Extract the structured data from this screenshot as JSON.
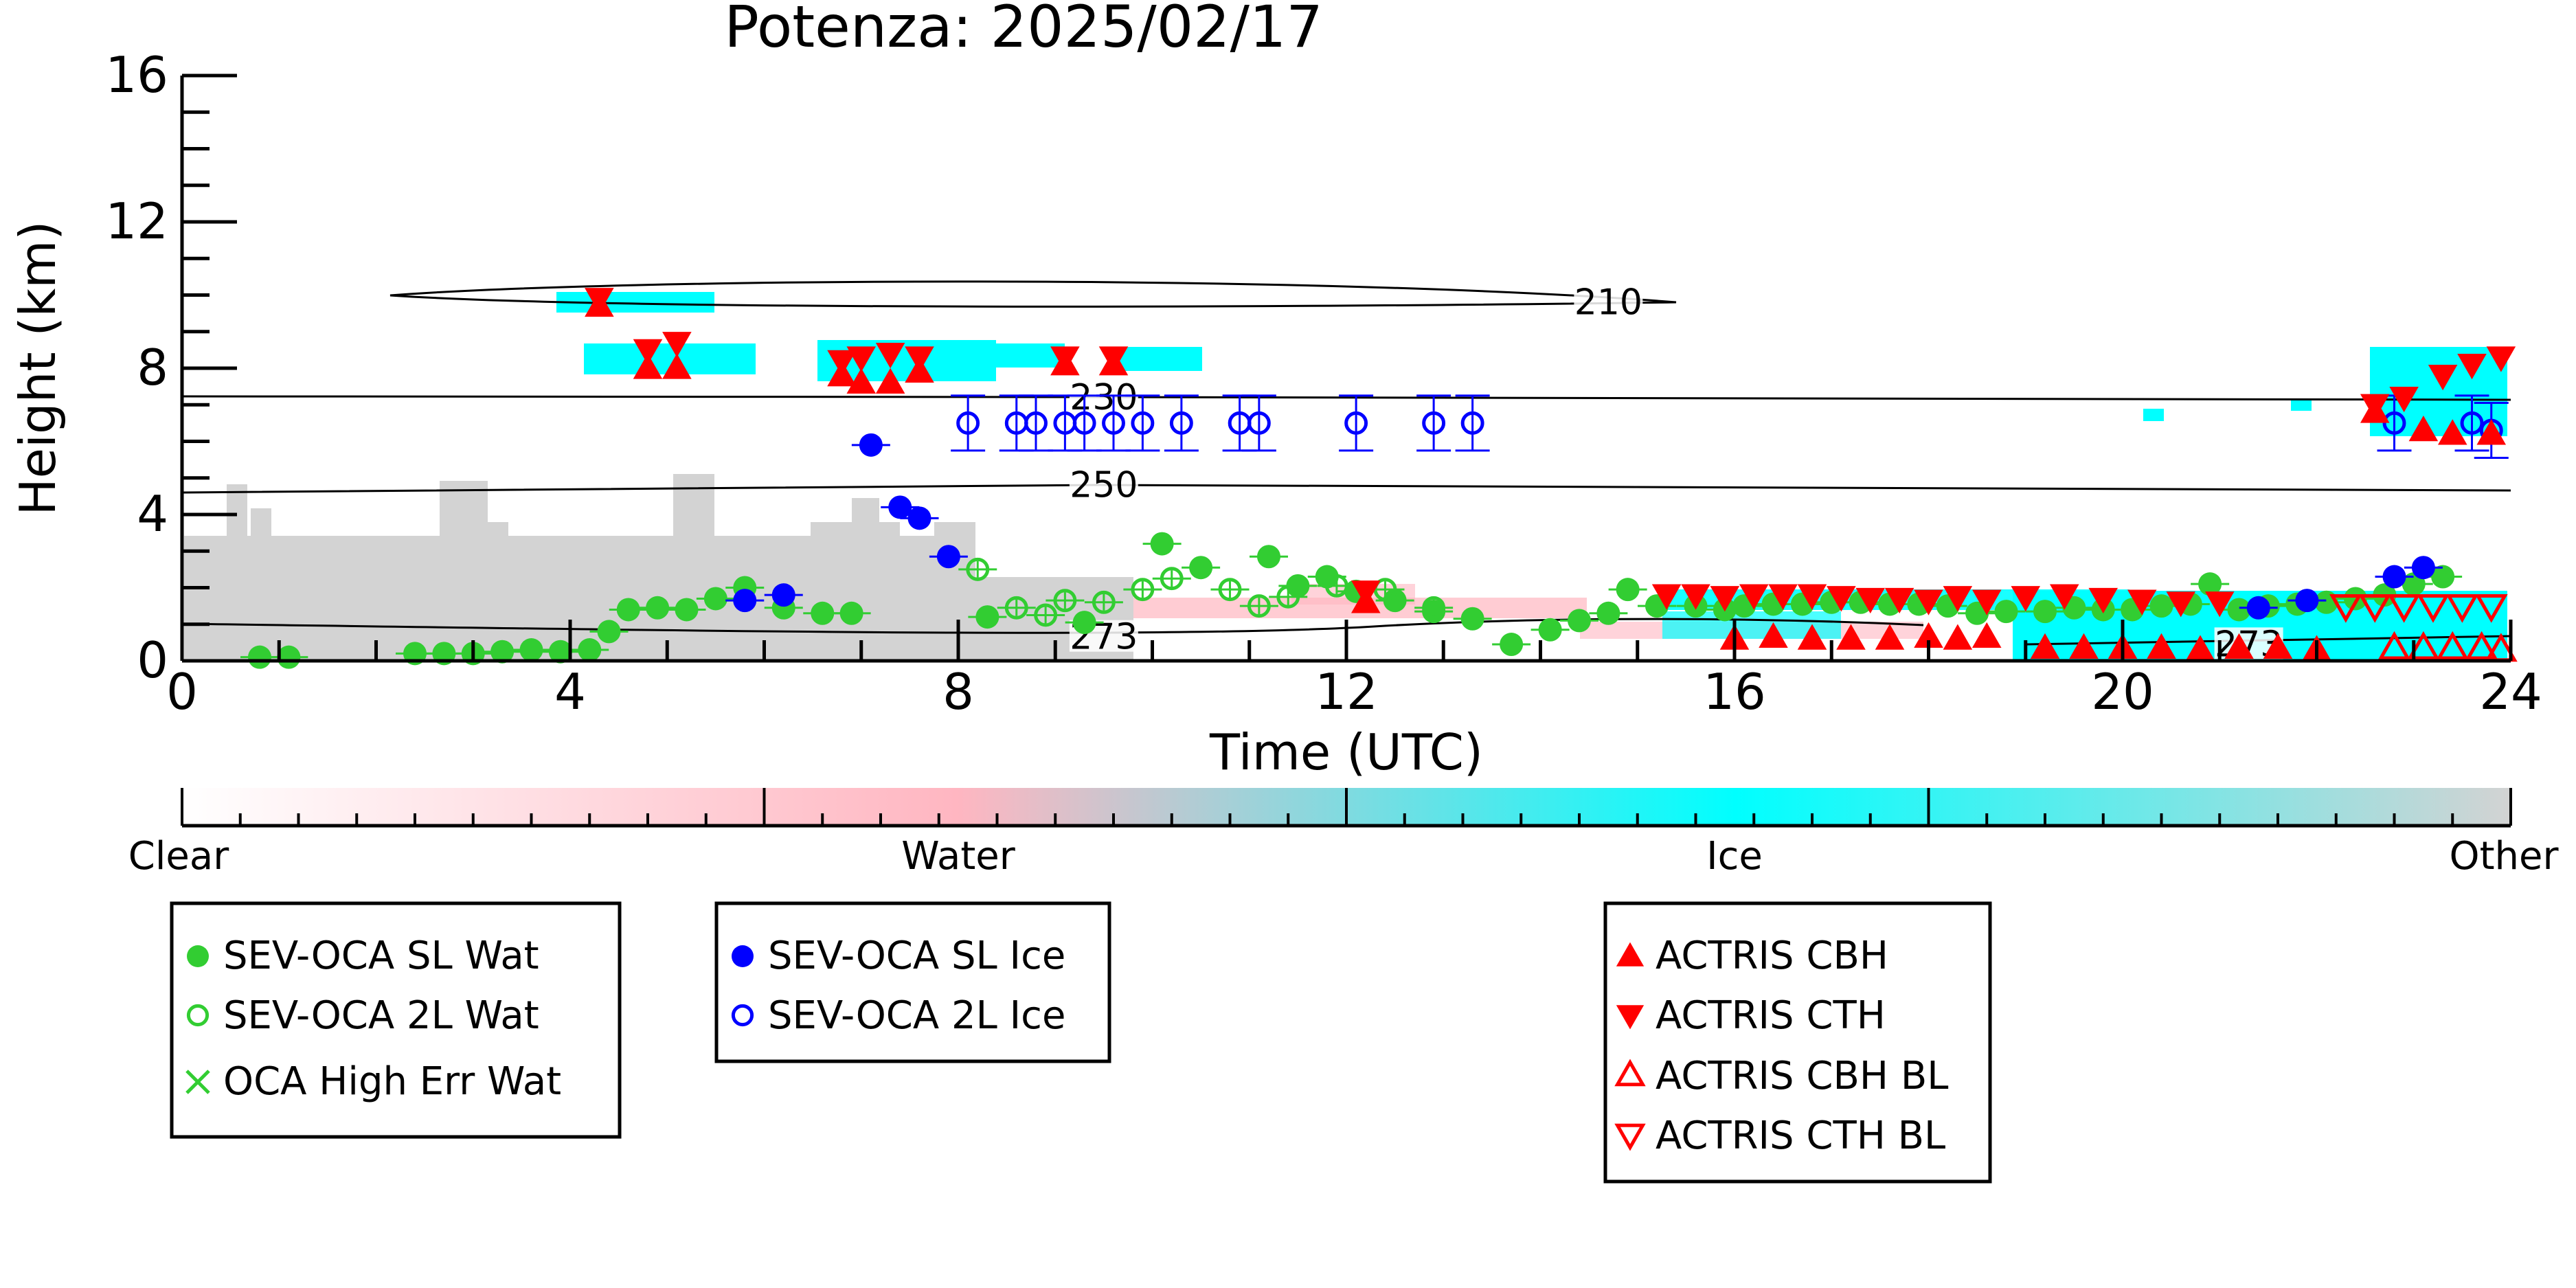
{
  "chart_data": {
    "type": "scatter",
    "title": "Potenza: 2025/02/17",
    "xlabel": "Time (UTC)",
    "ylabel": "Height (km)",
    "xlim": [
      0,
      24
    ],
    "ylim": [
      0,
      16
    ],
    "x_ticks": [
      0,
      4,
      8,
      12,
      16,
      20,
      24
    ],
    "y_ticks": [
      0,
      4,
      8,
      12,
      16
    ],
    "colorbar": {
      "labels": [
        "Clear",
        "Water",
        "Ice",
        "Other"
      ],
      "colors": [
        "#ffffff",
        "#ffb6c1",
        "#00ffff",
        "#d3d3d3"
      ]
    },
    "contours": [
      {
        "label": "210",
        "label_x": 14.7,
        "label_y": 9.7
      },
      {
        "label": "230",
        "label_x": 9.5,
        "label_y": 7.1
      },
      {
        "label": "250",
        "label_x": 9.5,
        "label_y": 4.7
      },
      {
        "label": "273",
        "label_x": 9.5,
        "label_y": 0.55
      },
      {
        "label": "273",
        "label_x": 21.3,
        "label_y": 0.35
      }
    ],
    "series": [
      {
        "name": "SEV-OCA SL Wat",
        "color": "#32cd32",
        "marker": "filled-circle",
        "points": [
          [
            0.8,
            0.1
          ],
          [
            1.1,
            0.1
          ],
          [
            2.4,
            0.2
          ],
          [
            2.7,
            0.2
          ],
          [
            3.0,
            0.2
          ],
          [
            3.3,
            0.25
          ],
          [
            3.6,
            0.3
          ],
          [
            3.9,
            0.25
          ],
          [
            4.2,
            0.3
          ],
          [
            4.4,
            0.8
          ],
          [
            4.6,
            1.4
          ],
          [
            4.9,
            1.45
          ],
          [
            5.2,
            1.4
          ],
          [
            5.5,
            1.7
          ],
          [
            5.8,
            2.0
          ],
          [
            6.2,
            1.45
          ],
          [
            6.6,
            1.3
          ],
          [
            6.9,
            1.3
          ],
          [
            8.3,
            1.2
          ],
          [
            9.3,
            1.05
          ],
          [
            10.1,
            3.2
          ],
          [
            10.5,
            2.55
          ],
          [
            11.2,
            2.85
          ],
          [
            11.5,
            2.05
          ],
          [
            11.8,
            2.3
          ],
          [
            12.1,
            1.9
          ],
          [
            12.5,
            1.65
          ],
          [
            12.9,
            1.35
          ],
          [
            13.3,
            1.15
          ],
          [
            13.7,
            0.45
          ],
          [
            14.1,
            0.85
          ],
          [
            14.4,
            1.1
          ],
          [
            14.7,
            1.3
          ],
          [
            14.9,
            1.95
          ],
          [
            15.2,
            1.5
          ],
          [
            15.6,
            1.5
          ],
          [
            15.9,
            1.4
          ],
          [
            16.1,
            1.5
          ],
          [
            16.4,
            1.55
          ],
          [
            16.7,
            1.55
          ],
          [
            17.0,
            1.6
          ],
          [
            17.3,
            1.6
          ],
          [
            17.6,
            1.55
          ],
          [
            17.9,
            1.55
          ],
          [
            18.2,
            1.5
          ],
          [
            18.5,
            1.3
          ],
          [
            18.8,
            1.35
          ],
          [
            19.2,
            1.35
          ],
          [
            19.5,
            1.45
          ],
          [
            19.8,
            1.4
          ],
          [
            20.1,
            1.4
          ],
          [
            20.4,
            1.5
          ],
          [
            20.7,
            1.55
          ],
          [
            20.9,
            2.1
          ],
          [
            21.2,
            1.4
          ],
          [
            21.5,
            1.5
          ],
          [
            21.8,
            1.55
          ],
          [
            22.1,
            1.6
          ],
          [
            22.4,
            1.7
          ],
          [
            22.7,
            1.8
          ],
          [
            23.0,
            2.1
          ],
          [
            23.3,
            2.3
          ]
        ]
      },
      {
        "name": "SEV-OCA 2L Wat",
        "color": "#32cd32",
        "marker": "open-circle",
        "points": [
          [
            8.2,
            2.5
          ],
          [
            8.6,
            1.45
          ],
          [
            8.9,
            1.25
          ],
          [
            9.1,
            1.65
          ],
          [
            9.5,
            1.6
          ],
          [
            9.9,
            1.95
          ],
          [
            10.2,
            2.25
          ],
          [
            10.8,
            1.95
          ],
          [
            11.1,
            1.5
          ],
          [
            11.4,
            1.75
          ],
          [
            11.9,
            2.05
          ],
          [
            12.4,
            1.95
          ],
          [
            12.9,
            1.45
          ]
        ]
      },
      {
        "name": "OCA High Err Wat",
        "color": "#32cd32",
        "marker": "x",
        "points": []
      },
      {
        "name": "SEV-OCA SL Ice",
        "color": "#0000ff",
        "marker": "filled-circle",
        "points": [
          [
            5.8,
            1.65
          ],
          [
            6.2,
            1.8
          ],
          [
            7.1,
            5.9
          ],
          [
            7.4,
            4.2
          ],
          [
            7.6,
            3.9
          ],
          [
            7.9,
            2.85
          ],
          [
            21.4,
            1.45
          ],
          [
            21.9,
            1.65
          ],
          [
            22.8,
            2.3
          ],
          [
            23.1,
            2.55
          ]
        ]
      },
      {
        "name": "SEV-OCA 2L Ice",
        "color": "#0000ff",
        "marker": "open-circle",
        "points": [
          [
            8.1,
            6.5
          ],
          [
            8.6,
            6.5
          ],
          [
            8.8,
            6.5
          ],
          [
            9.1,
            6.5
          ],
          [
            9.3,
            6.5
          ],
          [
            9.6,
            6.5
          ],
          [
            9.9,
            6.5
          ],
          [
            10.3,
            6.5
          ],
          [
            10.9,
            6.5
          ],
          [
            11.1,
            6.5
          ],
          [
            12.1,
            6.5
          ],
          [
            12.9,
            6.5
          ],
          [
            13.3,
            6.5
          ],
          [
            22.8,
            6.5
          ],
          [
            23.6,
            6.5
          ],
          [
            23.8,
            6.3
          ]
        ]
      },
      {
        "name": "ACTRIS CBH",
        "color": "#ff0000",
        "marker": "filled-triangle-up",
        "points": [
          [
            4.3,
            9.7
          ],
          [
            4.8,
            8.0
          ],
          [
            5.1,
            8.0
          ],
          [
            6.8,
            7.8
          ],
          [
            7.0,
            7.6
          ],
          [
            7.3,
            7.6
          ],
          [
            7.6,
            7.9
          ],
          [
            9.1,
            8.1
          ],
          [
            9.6,
            8.1
          ],
          [
            12.2,
            1.6
          ],
          [
            16.0,
            0.6
          ],
          [
            16.4,
            0.65
          ],
          [
            16.8,
            0.6
          ],
          [
            17.2,
            0.6
          ],
          [
            17.6,
            0.6
          ],
          [
            18.0,
            0.65
          ],
          [
            18.3,
            0.6
          ],
          [
            18.6,
            0.65
          ],
          [
            19.2,
            0.35
          ],
          [
            19.6,
            0.35
          ],
          [
            20.0,
            0.35
          ],
          [
            20.4,
            0.35
          ],
          [
            20.8,
            0.3
          ],
          [
            21.2,
            0.35
          ],
          [
            21.6,
            0.35
          ],
          [
            22.0,
            0.3
          ],
          [
            22.6,
            6.8
          ],
          [
            23.1,
            6.3
          ],
          [
            23.4,
            6.2
          ],
          [
            23.8,
            6.2
          ]
        ]
      },
      {
        "name": "ACTRIS CTH",
        "color": "#ff0000",
        "marker": "filled-triangle-down",
        "points": [
          [
            4.3,
            9.9
          ],
          [
            4.8,
            8.5
          ],
          [
            5.1,
            8.7
          ],
          [
            6.8,
            8.2
          ],
          [
            7.0,
            8.3
          ],
          [
            7.3,
            8.4
          ],
          [
            7.6,
            8.3
          ],
          [
            9.1,
            8.3
          ],
          [
            9.6,
            8.3
          ],
          [
            12.2,
            1.9
          ],
          [
            15.3,
            1.8
          ],
          [
            15.6,
            1.8
          ],
          [
            15.9,
            1.75
          ],
          [
            16.2,
            1.8
          ],
          [
            16.5,
            1.8
          ],
          [
            16.8,
            1.8
          ],
          [
            17.1,
            1.75
          ],
          [
            17.4,
            1.7
          ],
          [
            17.7,
            1.7
          ],
          [
            18.0,
            1.65
          ],
          [
            18.3,
            1.75
          ],
          [
            18.6,
            1.65
          ],
          [
            19.0,
            1.75
          ],
          [
            19.4,
            1.8
          ],
          [
            19.8,
            1.7
          ],
          [
            20.2,
            1.65
          ],
          [
            20.6,
            1.6
          ],
          [
            21.0,
            1.6
          ],
          [
            22.6,
            7.0
          ],
          [
            22.9,
            7.2
          ],
          [
            23.3,
            7.8
          ],
          [
            23.6,
            8.1
          ],
          [
            23.9,
            8.3
          ]
        ]
      },
      {
        "name": "ACTRIS CBH BL",
        "color": "#ff0000",
        "marker": "open-triangle-up",
        "points": [
          [
            22.8,
            0.35
          ],
          [
            23.1,
            0.35
          ],
          [
            23.4,
            0.35
          ],
          [
            23.7,
            0.35
          ],
          [
            23.9,
            0.3
          ]
        ]
      },
      {
        "name": "ACTRIS CTH BL",
        "color": "#ff0000",
        "marker": "open-triangle-down",
        "points": [
          [
            22.3,
            1.5
          ],
          [
            22.6,
            1.5
          ],
          [
            22.9,
            1.5
          ],
          [
            23.2,
            1.5
          ],
          [
            23.5,
            1.5
          ],
          [
            23.8,
            1.5
          ]
        ]
      }
    ]
  }
}
